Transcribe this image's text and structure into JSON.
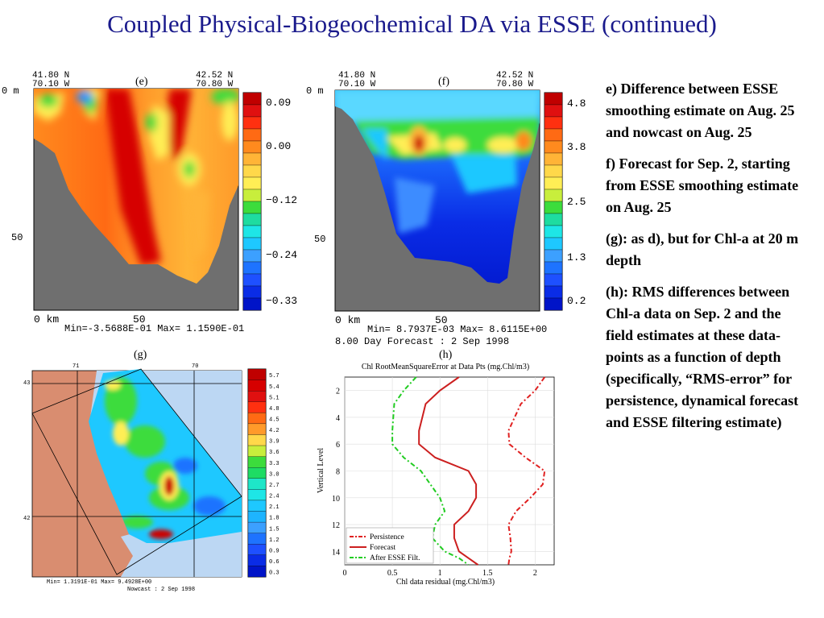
{
  "title": "Coupled Physical-Biogeochemical DA via ESSE (continued)",
  "panels": {
    "e": {
      "label": "(e)",
      "left_lat": "41.80 N",
      "left_lon": "70.10 W",
      "right_lat": "42.52 N",
      "right_lon": "70.80 W",
      "depth_top": "0 m",
      "depth_mid": "50",
      "x_left": "0  km",
      "x_mid": "50",
      "minmax": "Min=-3.5688E-01  Max= 1.1590E-01",
      "colorbar_ticks": [
        "0.09",
        "0.00",
        "−0.12",
        "−0.24",
        "−0.33"
      ]
    },
    "f": {
      "label": "(f)",
      "left_lat": "41.80 N",
      "left_lon": "70.10 W",
      "right_lat": "42.52 N",
      "right_lon": "70.80 W",
      "depth_top": "0 m",
      "depth_mid": "50",
      "x_left": "0  km",
      "x_mid": "50",
      "minmax": "Min= 8.7937E-03  Max= 8.6115E+00",
      "forecast": "8.00 Day Forecast :  2 Sep 1998",
      "colorbar_ticks": [
        "4.8",
        "3.8",
        "2.5",
        "1.3",
        "0.2"
      ]
    },
    "g": {
      "label": "(g)",
      "lon_ticks": [
        "71",
        "70"
      ],
      "lat_ticks": [
        "43",
        "42"
      ],
      "minmax": "Min= 1.3191E-01   Max= 9.4928E+00",
      "nowcast": "Nowcast :  2 Sep 1998",
      "colorbar_ticks": [
        "5.7",
        "5.4",
        "5.1",
        "4.8",
        "4.5",
        "4.2",
        "3.9",
        "3.6",
        "3.3",
        "3.0",
        "2.7",
        "2.4",
        "2.1",
        "1.8",
        "1.5",
        "1.2",
        "0.9",
        "0.6",
        "0.3"
      ]
    }
  },
  "colors": {
    "title": "#1a1a8c",
    "land": "#d98d70",
    "sea": "#bcd7f3",
    "seabed": "#6f6f6f",
    "persistence": "#e02020",
    "forecast": "#cc1f1f",
    "esse": "#22cc22"
  },
  "chart_data": {
    "type": "line",
    "label": "(h)",
    "title": "Chl RootMeanSquareError at Data Pts (mg.Chl/m3)",
    "xlabel": "Chl data residual (mg.Chl/m3)",
    "ylabel": "Vertical Level",
    "xlim": [
      0,
      2.2
    ],
    "ylim": [
      15,
      1
    ],
    "y_inverted": true,
    "xticks": [
      "0",
      "0.5",
      "1",
      "1.5",
      "2"
    ],
    "yticks": [
      "2",
      "4",
      "6",
      "8",
      "10",
      "12",
      "14"
    ],
    "legend_position": "bottom-left",
    "series": [
      {
        "name": "Persistence",
        "style": "dash-dot",
        "color": "#e02020",
        "x": [
          2.1,
          2.0,
          1.85,
          1.72,
          1.73,
          1.9,
          2.1,
          2.08,
          1.95,
          1.8,
          1.72,
          1.74,
          1.75,
          1.73,
          1.72
        ],
        "y": [
          1,
          2,
          3,
          5,
          6,
          7,
          8,
          9,
          10,
          11,
          12,
          13,
          14,
          14.5,
          15
        ]
      },
      {
        "name": "Forecast",
        "style": "solid",
        "color": "#cc1f1f",
        "x": [
          1.2,
          1.0,
          0.85,
          0.78,
          0.78,
          0.95,
          1.3,
          1.38,
          1.38,
          1.3,
          1.15,
          1.15,
          1.2,
          1.3,
          1.4
        ],
        "y": [
          1,
          2,
          3,
          5,
          6,
          7,
          8,
          9,
          10,
          11,
          12,
          13,
          14,
          14.5,
          15
        ]
      },
      {
        "name": "After ESSE Filt.",
        "style": "dash-dot",
        "color": "#22cc22",
        "x": [
          0.75,
          0.62,
          0.52,
          0.5,
          0.5,
          0.62,
          0.8,
          0.9,
          1.0,
          1.05,
          0.95,
          0.92,
          1.05,
          1.2,
          1.3
        ],
        "y": [
          1,
          2,
          3,
          5,
          6,
          7,
          8,
          9,
          10,
          11,
          12,
          13,
          14,
          14.5,
          15
        ]
      }
    ]
  }
}
